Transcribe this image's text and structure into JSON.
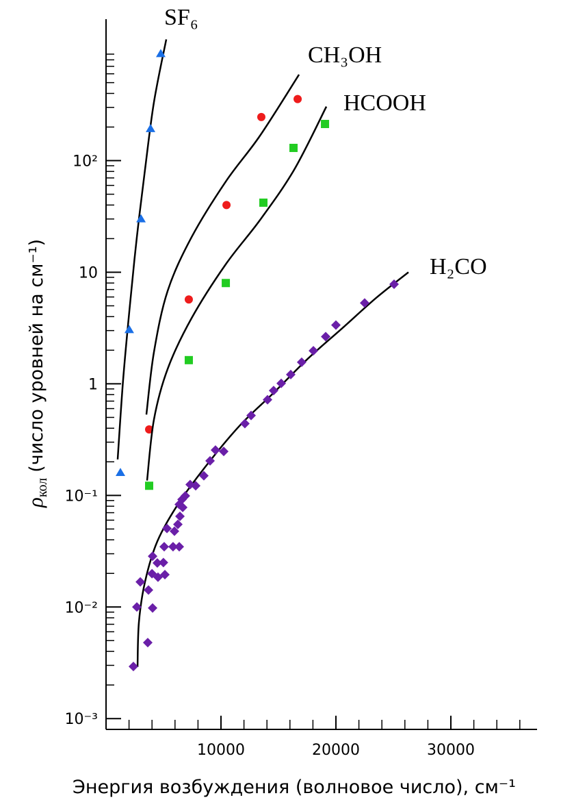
{
  "chart_data": {
    "type": "scatter",
    "xlabel": "Энергия возбуждения (волновое число), см⁻¹",
    "ylabel_symbol": "ρ",
    "ylabel_subscript": "кол",
    "ylabel": "(число уровней на см⁻¹)",
    "xlim": [
      0,
      37500
    ],
    "ylim": [
      0.0008,
      1800
    ],
    "yscale": "log",
    "xticks": [
      10000,
      20000,
      30000
    ],
    "xminor_ticks": [
      2000,
      4000,
      6000,
      8000,
      12000,
      14000,
      16000,
      18000,
      22000,
      24000,
      26000,
      28000,
      32000,
      34000,
      36000
    ],
    "yticks": [
      {
        "value": 0.001,
        "label": "10⁻³"
      },
      {
        "value": 0.01,
        "label": "10⁻²"
      },
      {
        "value": 0.1,
        "label": "10⁻¹"
      },
      1,
      10,
      {
        "value": 100,
        "label": "10²"
      }
    ],
    "series": [
      {
        "name": "SF₆",
        "color": "#1a6fe6",
        "marker": "triangle",
        "x": [
          1250,
          2020,
          3040,
          3870,
          4760
        ],
        "values": [
          0.16,
          3.05,
          30,
          193,
          907
        ],
        "fit": {
          "x": [
            1010,
            1490,
            2080,
            2680,
            3390,
            4170,
            5240
          ],
          "y": [
            0.21,
            1.1,
            5.1,
            20.6,
            83,
            335,
            1220
          ]
        }
      },
      {
        "name": "CH₃OH",
        "color": "#ee1c1c",
        "marker": "circle",
        "x": [
          3750,
          7200,
          10480,
          13510,
          16670
        ],
        "values": [
          0.39,
          5.7,
          40,
          246,
          356
        ],
        "fit": {
          "x": [
            3510,
            4170,
            5360,
            7440,
            10420,
            13390,
            16790
          ],
          "y": [
            0.53,
            1.93,
            6.8,
            20.6,
            65,
            167,
            590
          ]
        }
      },
      {
        "name": "HCOOH",
        "color": "#22cc22",
        "marker": "square",
        "x": [
          3750,
          7200,
          10420,
          13690,
          16310,
          19050
        ],
        "values": [
          0.122,
          1.63,
          8.0,
          42,
          130,
          213
        ],
        "fit": {
          "x": [
            3570,
            4170,
            5360,
            7440,
            10420,
            13390,
            16370,
            19170
          ],
          "y": [
            0.136,
            0.48,
            1.36,
            3.87,
            11.8,
            29.3,
            83,
            305
          ]
        }
      },
      {
        "name": "H₂CO",
        "color": "#6a1fa8",
        "marker": "diamond",
        "x": [
          2380,
          3630,
          2680,
          4050,
          2980,
          3690,
          4000,
          4520,
          5120,
          4050,
          4460,
          4990,
          5060,
          5830,
          6370,
          5300,
          5950,
          6250,
          6430,
          6370,
          6670,
          6610,
          6900,
          7320,
          7800,
          8510,
          9050,
          9520,
          10240,
          12080,
          12620,
          14050,
          14580,
          15240,
          16070,
          17020,
          18040,
          19110,
          20000,
          22500,
          25060
        ],
        "values": [
          0.00293,
          0.0048,
          0.01,
          0.0098,
          0.0168,
          0.0142,
          0.0199,
          0.0185,
          0.0195,
          0.0285,
          0.0248,
          0.025,
          0.0347,
          0.0347,
          0.0347,
          0.0505,
          0.0478,
          0.055,
          0.065,
          0.083,
          0.078,
          0.092,
          0.099,
          0.125,
          0.122,
          0.15,
          0.204,
          0.255,
          0.248,
          0.44,
          0.52,
          0.72,
          0.87,
          1.01,
          1.21,
          1.56,
          1.98,
          2.65,
          3.36,
          5.3,
          7.8
        ],
        "fit": {
          "x": [
            2740,
            2860,
            3390,
            4460,
            6250,
            8630,
            11610,
            14580,
            17560,
            20540,
            23510,
            26310
          ],
          "y": [
            0.0029,
            0.0073,
            0.0168,
            0.0387,
            0.083,
            0.18,
            0.42,
            0.83,
            1.68,
            3.14,
            5.9,
            10.0
          ]
        }
      }
    ]
  }
}
